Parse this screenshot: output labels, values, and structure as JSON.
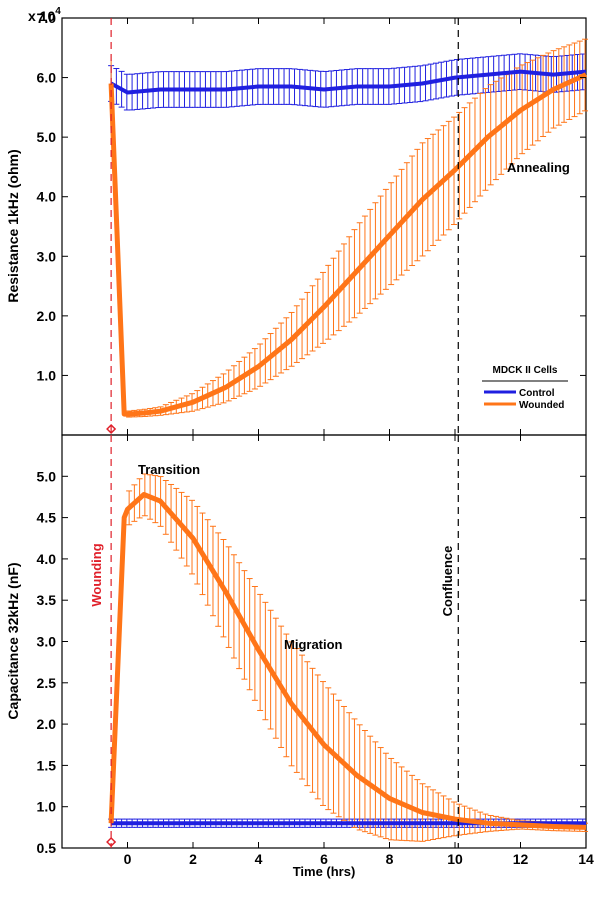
{
  "chart_data": [
    {
      "type": "line",
      "panel": "top",
      "ylabel": "Resistance 1kHz (ohm)",
      "y_multiplier_label": "x 10",
      "y_multiplier_exp": "4",
      "ylim": [
        0,
        7.0
      ],
      "xlim": [
        -2,
        14
      ],
      "yticks": [
        "1.0",
        "2.0",
        "3.0",
        "4.0",
        "5.0",
        "6.0",
        "7.0"
      ],
      "series": [
        {
          "name": "Control",
          "color": "#1f1fe0",
          "x": [
            -0.5,
            0,
            1,
            2,
            3,
            4,
            5,
            6,
            7,
            8,
            9,
            10,
            11,
            12,
            13,
            14
          ],
          "y": [
            5.9,
            5.75,
            5.8,
            5.8,
            5.8,
            5.85,
            5.85,
            5.8,
            5.85,
            5.85,
            5.9,
            6.0,
            6.05,
            6.1,
            6.05,
            6.1
          ],
          "err": [
            0.3,
            0.3,
            0.3,
            0.3,
            0.3,
            0.3,
            0.3,
            0.3,
            0.3,
            0.3,
            0.3,
            0.3,
            0.3,
            0.3,
            0.3,
            0.3
          ]
        },
        {
          "name": "Wounded",
          "color": "#ff7518",
          "x": [
            -0.5,
            -0.1,
            0,
            0.5,
            1,
            2,
            3,
            4,
            5,
            6,
            7,
            8,
            9,
            10,
            11,
            12,
            13,
            14
          ],
          "y": [
            5.9,
            0.35,
            0.35,
            0.37,
            0.4,
            0.55,
            0.8,
            1.15,
            1.6,
            2.15,
            2.75,
            3.35,
            3.95,
            4.45,
            5.0,
            5.45,
            5.8,
            6.05
          ],
          "err": [
            0.4,
            0.05,
            0.05,
            0.06,
            0.07,
            0.15,
            0.25,
            0.35,
            0.45,
            0.6,
            0.75,
            0.85,
            0.95,
            0.9,
            0.85,
            0.75,
            0.65,
            0.6
          ]
        }
      ],
      "legend_title": "MDCK II Cells",
      "annotations": [
        "Annealing"
      ]
    },
    {
      "type": "line",
      "panel": "bottom",
      "ylabel": "Capacitance 32kHz (nF)",
      "xlabel": "Time (hrs)",
      "ylim": [
        0.5,
        5.5
      ],
      "xlim": [
        -2,
        14
      ],
      "yticks": [
        "0.5",
        "1.0",
        "1.5",
        "2.0",
        "2.5",
        "3.0",
        "3.5",
        "4.0",
        "4.5",
        "5.0"
      ],
      "xticks": [
        "0",
        "2",
        "4",
        "6",
        "8",
        "10",
        "12",
        "14"
      ],
      "series": [
        {
          "name": "Control",
          "color": "#1f1fe0",
          "x": [
            -0.5,
            0,
            2,
            4,
            6,
            8,
            10,
            12,
            14
          ],
          "y": [
            0.8,
            0.8,
            0.8,
            0.8,
            0.8,
            0.8,
            0.8,
            0.8,
            0.8
          ],
          "err": [
            0.05,
            0.05,
            0.05,
            0.05,
            0.05,
            0.05,
            0.05,
            0.05,
            0.05
          ]
        },
        {
          "name": "Wounded",
          "color": "#ff7518",
          "x": [
            -0.5,
            -0.1,
            0,
            0.5,
            1,
            2,
            3,
            4,
            5,
            6,
            7,
            8,
            9,
            10,
            11,
            12,
            13,
            14
          ],
          "y": [
            0.8,
            4.5,
            4.6,
            4.78,
            4.7,
            4.25,
            3.6,
            2.9,
            2.25,
            1.75,
            1.38,
            1.1,
            0.93,
            0.85,
            0.8,
            0.78,
            0.76,
            0.75
          ],
          "err": [
            0.05,
            0.2,
            0.2,
            0.25,
            0.3,
            0.45,
            0.6,
            0.7,
            0.75,
            0.75,
            0.65,
            0.5,
            0.35,
            0.2,
            0.1,
            0.05,
            0.05,
            0.05
          ]
        }
      ],
      "annotations": [
        "Transition",
        "Migration"
      ]
    }
  ],
  "markers": {
    "wounding_label": "Wounding",
    "wounding_x": -0.5,
    "wounding_color": "#e0202a",
    "confluence_label": "Confluence",
    "confluence_x": 10.1
  }
}
